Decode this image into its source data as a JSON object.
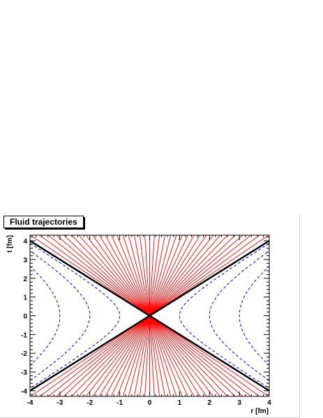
{
  "chart_data": {
    "type": "line",
    "title": "Fluid trajectories",
    "xlabel": "r [fm]",
    "ylabel": "t [fm]",
    "xlim": [
      -4,
      4
    ],
    "ylim": [
      -4.3,
      4.3
    ],
    "x_ticks": [
      "-4",
      "-3",
      "-2",
      "-1",
      "0",
      "1",
      "2",
      "3",
      "4"
    ],
    "y_ticks": [
      "-4",
      "-3",
      "-2",
      "-1",
      "0",
      "1",
      "2",
      "3",
      "4"
    ],
    "grid": false,
    "colors": {
      "trajectories": "#ff0000",
      "light_cone": "#000000",
      "hyperbolas": "#0000ff"
    },
    "series": [
      {
        "kind": "rays through origin",
        "style": "solid",
        "color": "#ff0000",
        "slopes": [
          1.08,
          1.17,
          1.27,
          1.38,
          1.5,
          1.65,
          1.82,
          2.02,
          2.26,
          2.55,
          2.9,
          3.35,
          3.95,
          4.8,
          6.1,
          8.4,
          13,
          27,
          "inf",
          -27,
          -13,
          -8.4,
          -6.1,
          -4.8,
          -3.95,
          -3.35,
          -2.9,
          -2.55,
          -2.26,
          -2.02,
          -1.82,
          -1.65,
          -1.5,
          -1.38,
          -1.27,
          -1.17,
          -1.08
        ]
      },
      {
        "kind": "light cone",
        "style": "solid",
        "color": "#000000",
        "lines": [
          {
            "from": [
              -4,
              -4
            ],
            "to": [
              4,
              4
            ]
          },
          {
            "from": [
              -4,
              4
            ],
            "to": [
              4,
              -4
            ]
          }
        ]
      },
      {
        "kind": "hyperbolas r^2 - t^2 = a^2",
        "style": "dashed",
        "color": "#0000ff",
        "a": [
          1,
          2,
          3
        ]
      }
    ]
  }
}
